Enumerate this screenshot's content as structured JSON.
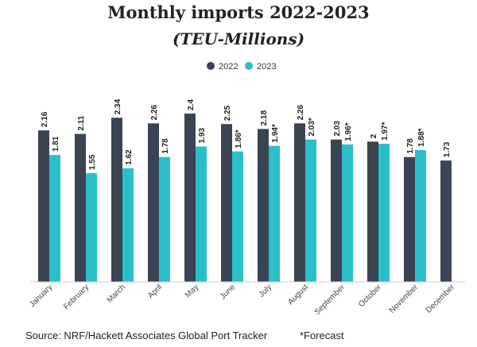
{
  "chart_data": {
    "type": "bar",
    "title": "Monthly imports 2022-2023",
    "subtitle": "(TEU-Millions)",
    "categories": [
      "January",
      "February",
      "March",
      "April",
      "May",
      "June",
      "July",
      "August",
      "September",
      "October",
      "November",
      "December"
    ],
    "series": [
      {
        "name": "2022",
        "color": "#3a4453",
        "values": [
          2.16,
          2.11,
          2.34,
          2.26,
          2.4,
          2.25,
          2.18,
          2.26,
          2.03,
          2,
          1.78,
          1.73
        ],
        "labels": [
          "2.16",
          "2.11",
          "2.34",
          "2.26",
          "2.4",
          "2.25",
          "2.18",
          "2.26",
          "2.03",
          "2",
          "1.78",
          "1.73"
        ]
      },
      {
        "name": "2023",
        "color": "#2bbfca",
        "values": [
          1.81,
          1.55,
          1.62,
          1.78,
          1.93,
          1.86,
          1.94,
          2.03,
          1.96,
          1.97,
          1.88,
          null
        ],
        "labels": [
          "1.81",
          "1.55",
          "1.62",
          "1.78",
          "1.93",
          "1.86*",
          "1.94*",
          "2.03*",
          "1.96*",
          "1.97*",
          "1.88*",
          ""
        ]
      }
    ],
    "ylim": [
      0,
      2.4
    ],
    "grid": false,
    "legend_position": "top-center",
    "source": "Source: NRF/Hackett Associates Global Port Tracker",
    "footnote": "*Forecast"
  }
}
